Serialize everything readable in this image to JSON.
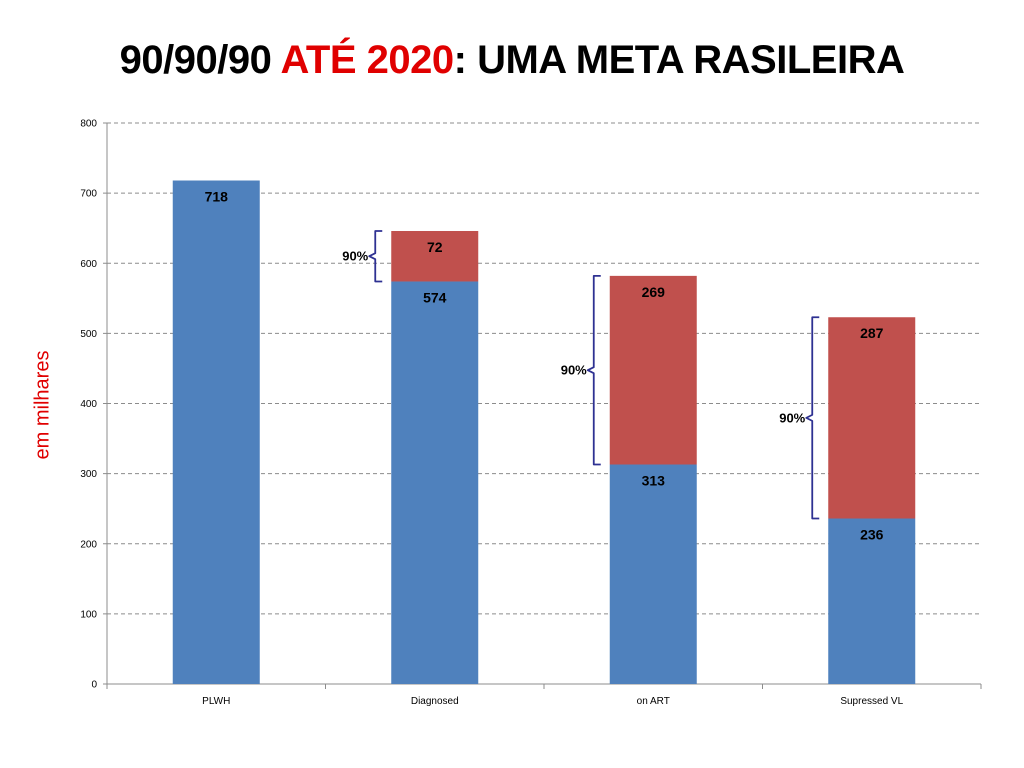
{
  "title": {
    "part1": "90/90/90 ",
    "part2": "ATÉ 2020",
    "part3": ": UMA META RASILEIRA",
    "accent_color": "#e00000"
  },
  "chart_data": {
    "type": "bar",
    "stacked": true,
    "categories": [
      "PLWH",
      "Diagnosed",
      "on ART",
      "Supressed VL"
    ],
    "series": [
      {
        "color": "#4f81bd",
        "values": [
          718,
          574,
          313,
          236
        ]
      },
      {
        "color": "#c0504d",
        "values": [
          0,
          72,
          269,
          287
        ]
      }
    ],
    "ylabel": "em milhares",
    "ylabel_color": "#e00000",
    "ylim": [
      0,
      800
    ],
    "yticks": [
      0,
      100,
      200,
      300,
      400,
      500,
      600,
      700,
      800
    ],
    "grid": "dashed horizontal",
    "annotations": [
      {
        "category": "Diagnosed",
        "label": "90%",
        "from": 574,
        "to": 646
      },
      {
        "category": "on ART",
        "label": "90%",
        "from": 313,
        "to": 582
      },
      {
        "category": "Supressed VL",
        "label": "90%",
        "from": 236,
        "to": 523
      }
    ]
  }
}
